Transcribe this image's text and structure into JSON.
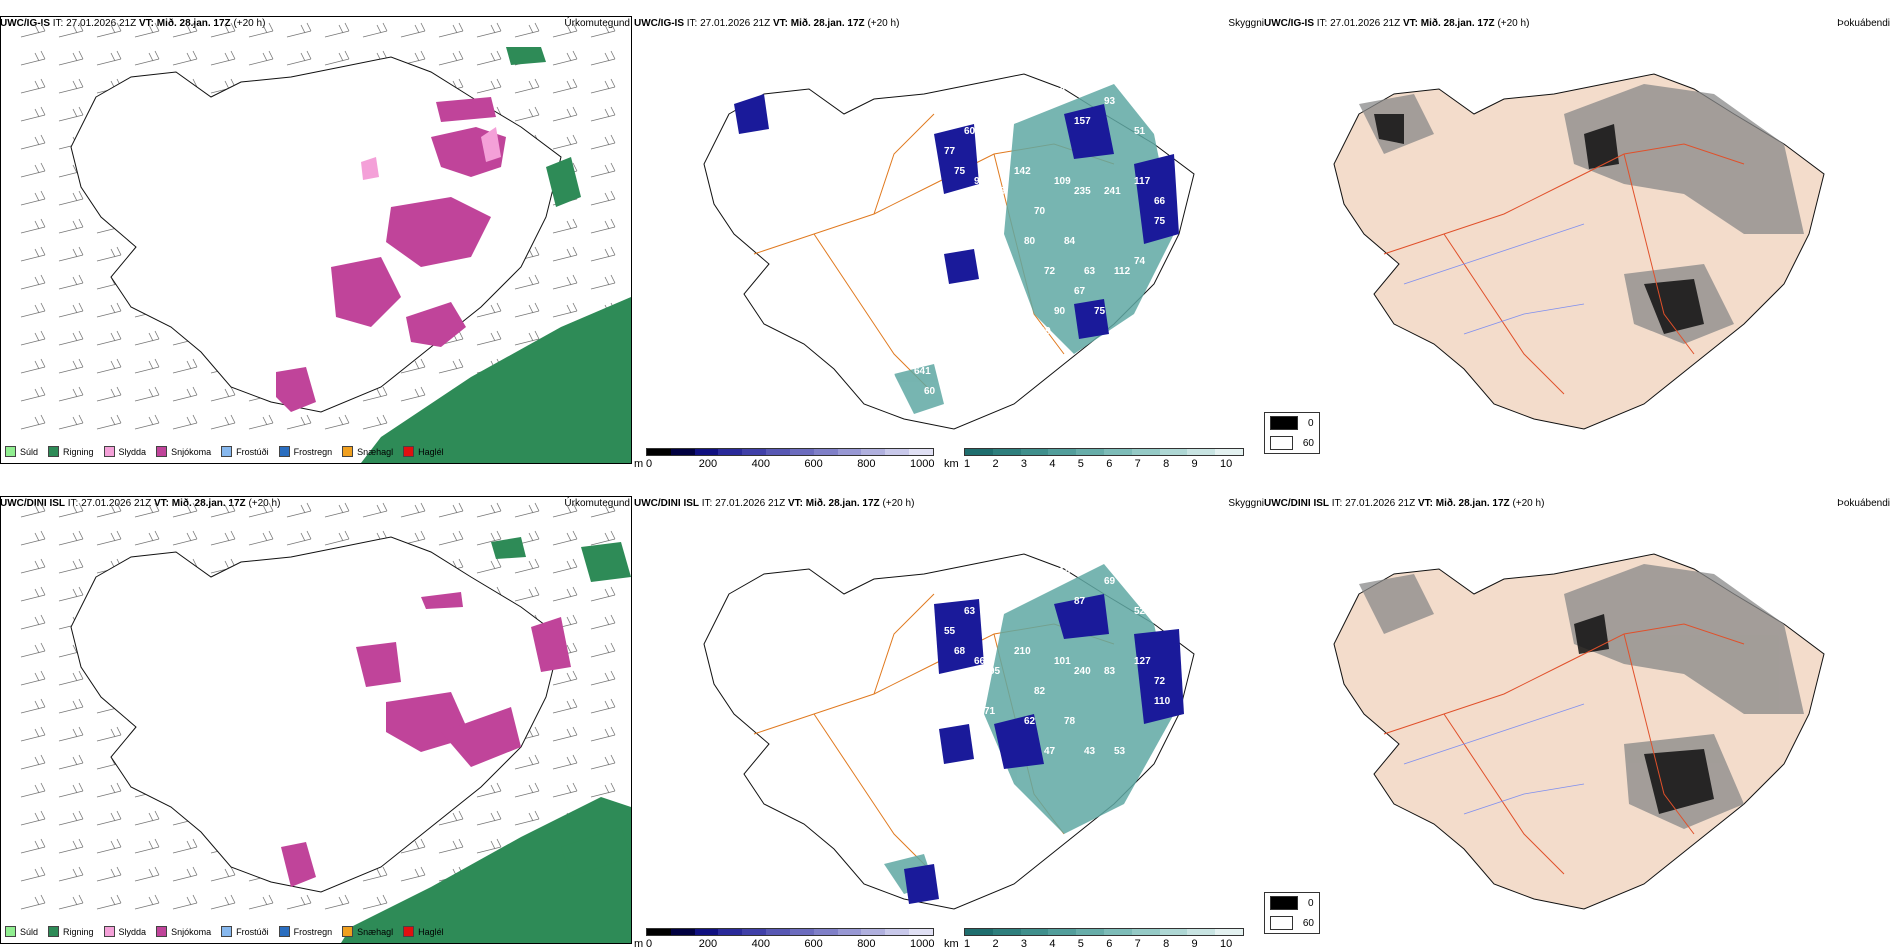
{
  "rows": [
    {
      "model": "UWC/IG-IS",
      "it_label": "IT:",
      "it_value": "27.01.2026 21Z",
      "vt_label": "VT:",
      "vt_value": "Mið. 28.jan. 17Z",
      "lead": "(+20 h)"
    },
    {
      "model": "UWC/DINI ISL",
      "it_label": "IT:",
      "it_value": "27.01.2026 21Z",
      "vt_label": "VT:",
      "vt_value": "Mið. 28.jan. 17Z",
      "lead": "(+20 h)"
    }
  ],
  "panels": {
    "precip": "Úrkomutegund",
    "sky": "Skyggni",
    "fog": "Þokuábendi"
  },
  "precip_legend": [
    {
      "label": "Súld",
      "color": "#90ee90"
    },
    {
      "label": "Rigning",
      "color": "#2e8b57"
    },
    {
      "label": "Slydda",
      "color": "#f4a0d8"
    },
    {
      "label": "Snjókoma",
      "color": "#c0449a"
    },
    {
      "label": "Frostúði",
      "color": "#87b8ee"
    },
    {
      "label": "Frostregn",
      "color": "#2a6ec0"
    },
    {
      "label": "Snæhagl",
      "color": "#f0a020"
    },
    {
      "label": "Haglél",
      "color": "#e01010"
    }
  ],
  "ceiling_bar": {
    "unit": "m",
    "ticks": [
      "0",
      "200",
      "400",
      "600",
      "800",
      "1000"
    ],
    "colors": [
      "#000000",
      "#000040",
      "#101080",
      "#2a2a9a",
      "#4040a8",
      "#5858b4",
      "#6c6cbe",
      "#8080c8",
      "#9898d4",
      "#b0b0de",
      "#c8c8ea",
      "#e0e0f4"
    ]
  },
  "vis_bar": {
    "unit": "km",
    "ticks": [
      "1",
      "2",
      "3",
      "4",
      "5",
      "6",
      "7",
      "8",
      "9",
      "10"
    ],
    "colors": [
      "#1f6e6e",
      "#2e7f7d",
      "#3f8f8c",
      "#529e9b",
      "#67ada9",
      "#7dbcb8",
      "#95cac6",
      "#aed7d4",
      "#c8e4e2",
      "#e3f1f0"
    ]
  },
  "fog_legend": [
    {
      "label": "0",
      "color": "#000000"
    },
    {
      "label": "60",
      "color": "#ffffff"
    }
  ],
  "ceiling_labels_top": [
    "92",
    "93",
    "157",
    "51",
    "60",
    "77",
    "75",
    "91",
    "116",
    "142",
    "109",
    "235",
    "241",
    "117",
    "66",
    "75",
    "131",
    "70",
    "80",
    "137",
    "84",
    "72",
    "63",
    "112",
    "67",
    "79",
    "74",
    "75",
    "90",
    "129",
    "79",
    "641",
    "60",
    "80"
  ],
  "ceiling_labels_bottom": [
    "118",
    "69",
    "87",
    "52",
    "63",
    "55",
    "68",
    "66",
    "95",
    "210",
    "101",
    "240",
    "83",
    "127",
    "72",
    "110",
    "71",
    "82",
    "62",
    "72",
    "78",
    "47",
    "43",
    "53"
  ]
}
